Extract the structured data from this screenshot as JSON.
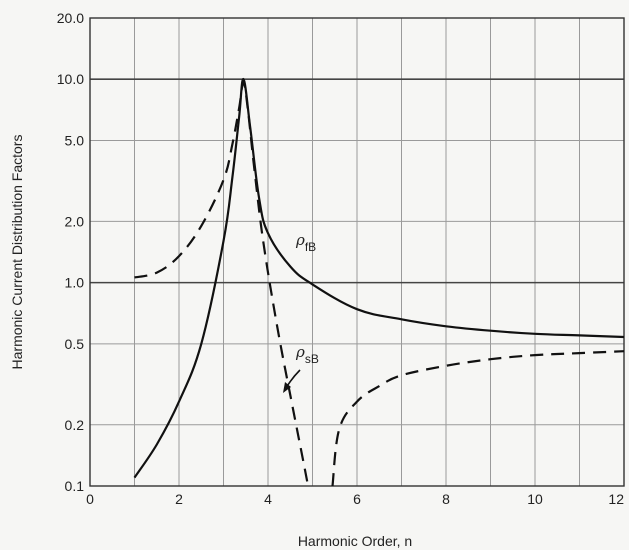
{
  "chart_data": {
    "type": "line",
    "title": "",
    "xlabel": "Harmonic Order, n",
    "ylabel": "Harmonic Current Distribution Factors",
    "xlim": [
      0,
      12
    ],
    "ylim": [
      0.1,
      20.0
    ],
    "yscale": "log",
    "grid": true,
    "x_ticks": [
      0,
      2,
      4,
      6,
      8,
      10,
      12
    ],
    "x_tick_labels": [
      "0",
      "2",
      "4",
      "6",
      "8",
      "10",
      "12"
    ],
    "y_ticks": [
      0.1,
      0.2,
      0.5,
      1.0,
      2.0,
      5.0,
      10.0,
      20.0
    ],
    "y_tick_labels": [
      "0.1",
      "0.2",
      "0.5",
      "1.0",
      "2.0",
      "5.0",
      "10.0",
      "20.0"
    ],
    "series": [
      {
        "name_main": "ρ",
        "name_sub": "fB",
        "style": "solid",
        "x": [
          1.0,
          1.5,
          2.0,
          2.5,
          3.0,
          3.2,
          3.35,
          3.45,
          3.6,
          3.8,
          4.0,
          4.5,
          5.0,
          6.0,
          7.0,
          8.0,
          9.0,
          10.0,
          11.0,
          12.0
        ],
        "y": [
          0.11,
          0.16,
          0.26,
          0.5,
          1.6,
          3.3,
          6.5,
          10.0,
          5.8,
          2.6,
          1.75,
          1.2,
          0.98,
          0.74,
          0.66,
          0.61,
          0.58,
          0.56,
          0.55,
          0.54
        ]
      },
      {
        "name_main": "ρ",
        "name_sub": "sB",
        "style": "dashed",
        "x": [
          1.0,
          1.5,
          2.0,
          2.5,
          3.0,
          3.2,
          3.35,
          3.45,
          3.55,
          3.7,
          3.9,
          4.2,
          4.5,
          4.8,
          4.9,
          5.45,
          5.6,
          6.0,
          6.5,
          7.0,
          8.0,
          9.0,
          10.0,
          11.0,
          12.0
        ],
        "y": [
          1.06,
          1.12,
          1.35,
          1.9,
          3.2,
          4.8,
          7.2,
          9.6,
          7.0,
          3.5,
          1.55,
          0.62,
          0.28,
          0.13,
          0.1,
          0.1,
          0.19,
          0.26,
          0.31,
          0.35,
          0.39,
          0.42,
          0.44,
          0.45,
          0.46
        ]
      }
    ]
  }
}
